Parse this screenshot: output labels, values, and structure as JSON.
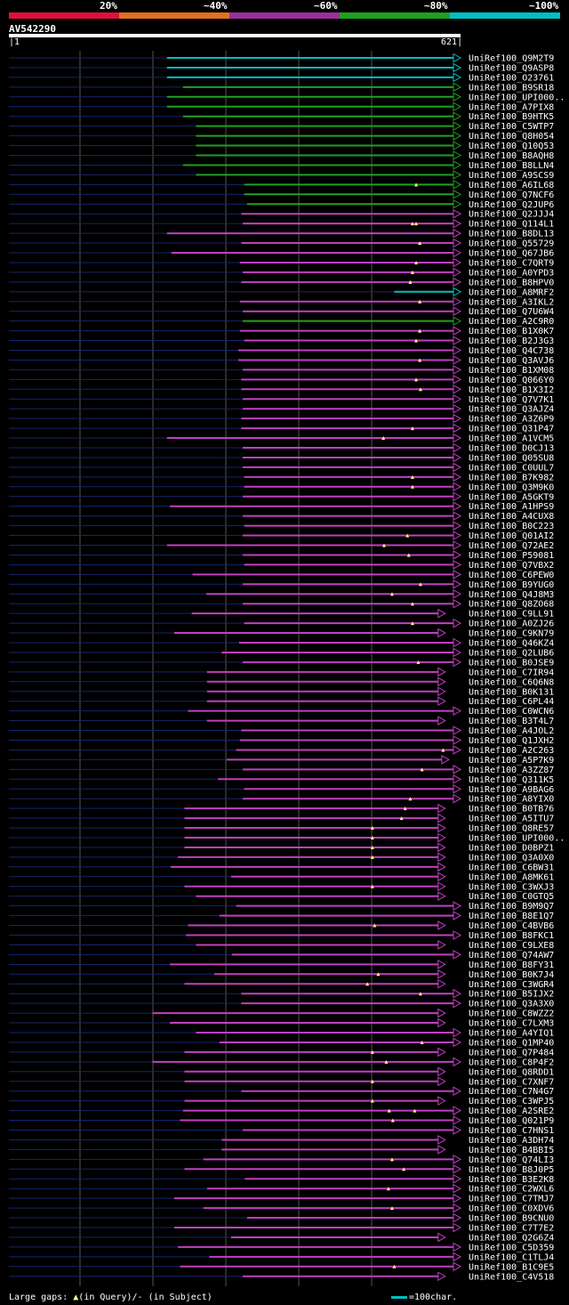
{
  "legend": {
    "labels": [
      "20%",
      "~40%",
      "~60%",
      "~80%",
      "~100%"
    ],
    "colors": [
      "#e0103a",
      "#e07020",
      "#9a2f9a",
      "#20a020",
      "#00c0c0"
    ]
  },
  "query": {
    "name": "AV542290",
    "start": "1",
    "end": "621"
  },
  "footer": {
    "gaps_label": "Large gaps:",
    "query_gap": "(in Query)/",
    "subject_gap": "- (in Subject)",
    "scale_label": "=100char."
  },
  "chart_data": {
    "type": "alignment",
    "query_length": 621,
    "hits": [
      {
        "name": "UniRef100_Q9M2T9",
        "from": 218,
        "to": 621,
        "color": "cyan",
        "gaps": []
      },
      {
        "name": "UniRef100_Q9ASP8",
        "from": 218,
        "to": 621,
        "color": "cyan",
        "gaps": []
      },
      {
        "name": "UniRef100_O23761",
        "from": 218,
        "to": 621,
        "color": "cyan",
        "gaps": []
      },
      {
        "name": "UniRef100_B9SR18",
        "from": 240,
        "to": 621,
        "color": "green",
        "gaps": []
      },
      {
        "name": "UniRef100_UPI000..",
        "from": 218,
        "to": 621,
        "color": "green",
        "gaps": []
      },
      {
        "name": "UniRef100_A7PIX8",
        "from": 218,
        "to": 621,
        "color": "green",
        "gaps": []
      },
      {
        "name": "UniRef100_B9HTK5",
        "from": 240,
        "to": 621,
        "color": "green",
        "gaps": []
      },
      {
        "name": "UniRef100_C5WTP7",
        "from": 258,
        "to": 621,
        "color": "green",
        "gaps": []
      },
      {
        "name": "UniRef100_Q8H054",
        "from": 258,
        "to": 621,
        "color": "green",
        "gaps": []
      },
      {
        "name": "UniRef100_Q10Q53",
        "from": 258,
        "to": 621,
        "color": "green",
        "gaps": []
      },
      {
        "name": "UniRef100_B8AQH8",
        "from": 258,
        "to": 621,
        "color": "green",
        "gaps": []
      },
      {
        "name": "UniRef100_B8LLN4",
        "from": 240,
        "to": 621,
        "color": "green",
        "gaps": []
      },
      {
        "name": "UniRef100_A9SCS9",
        "from": 258,
        "to": 621,
        "color": "green",
        "gaps": []
      },
      {
        "name": "UniRef100_A6IL68",
        "from": 324,
        "to": 621,
        "color": "green",
        "gaps": [
          560
        ]
      },
      {
        "name": "UniRef100_Q7NCF6",
        "from": 324,
        "to": 621,
        "color": "green",
        "gaps": []
      },
      {
        "name": "UniRef100_Q2JUP6",
        "from": 328,
        "to": 621,
        "color": "green",
        "gaps": []
      },
      {
        "name": "UniRef100_Q2JJJ4",
        "from": 320,
        "to": 621,
        "color": "magenta",
        "gaps": []
      },
      {
        "name": "UniRef100_Q114L1",
        "from": 322,
        "to": 621,
        "color": "magenta",
        "gaps": [
          555,
          560
        ]
      },
      {
        "name": "UniRef100_B8DL13",
        "from": 218,
        "to": 621,
        "color": "magenta",
        "gaps": []
      },
      {
        "name": "UniRef100_Q55729",
        "from": 320,
        "to": 621,
        "color": "magenta",
        "gaps": [
          565
        ]
      },
      {
        "name": "UniRef100_Q67JB6",
        "from": 224,
        "to": 621,
        "color": "magenta",
        "gaps": []
      },
      {
        "name": "UniRef100_C7QRT9",
        "from": 318,
        "to": 621,
        "color": "magenta",
        "gaps": [
          560
        ]
      },
      {
        "name": "UniRef100_A0YPD3",
        "from": 322,
        "to": 621,
        "color": "magenta",
        "gaps": [
          555
        ]
      },
      {
        "name": "UniRef100_B8HPV0",
        "from": 320,
        "to": 621,
        "color": "magenta",
        "gaps": [
          552
        ]
      },
      {
        "name": "UniRef100_A8MRF2",
        "from": 530,
        "to": 621,
        "color": "cyan",
        "gaps": []
      },
      {
        "name": "UniRef100_A3IKL2",
        "from": 318,
        "to": 621,
        "color": "magenta",
        "gaps": [
          565
        ]
      },
      {
        "name": "UniRef100_Q7U6W4",
        "from": 322,
        "to": 621,
        "color": "magenta",
        "gaps": []
      },
      {
        "name": "UniRef100_A2C9R0",
        "from": 322,
        "to": 621,
        "color": "green",
        "gaps": []
      },
      {
        "name": "UniRef100_B1X0K7",
        "from": 318,
        "to": 621,
        "color": "magenta",
        "gaps": [
          565
        ]
      },
      {
        "name": "UniRef100_B2J3G3",
        "from": 324,
        "to": 621,
        "color": "magenta",
        "gaps": [
          560
        ]
      },
      {
        "name": "UniRef100_Q4C738",
        "from": 316,
        "to": 621,
        "color": "magenta",
        "gaps": []
      },
      {
        "name": "UniRef100_Q3AVJ6",
        "from": 316,
        "to": 621,
        "color": "magenta",
        "gaps": [
          565
        ]
      },
      {
        "name": "UniRef100_B1XM08",
        "from": 322,
        "to": 621,
        "color": "magenta",
        "gaps": []
      },
      {
        "name": "UniRef100_Q066Y0",
        "from": 320,
        "to": 621,
        "color": "magenta",
        "gaps": [
          560
        ]
      },
      {
        "name": "UniRef100_B1X3I2",
        "from": 320,
        "to": 621,
        "color": "magenta",
        "gaps": [
          566
        ]
      },
      {
        "name": "UniRef100_Q7V7K1",
        "from": 322,
        "to": 621,
        "color": "magenta",
        "gaps": []
      },
      {
        "name": "UniRef100_Q3AJZ4",
        "from": 322,
        "to": 621,
        "color": "magenta",
        "gaps": []
      },
      {
        "name": "UniRef100_A3Z6P9",
        "from": 320,
        "to": 621,
        "color": "magenta",
        "gaps": []
      },
      {
        "name": "UniRef100_Q31P47",
        "from": 320,
        "to": 621,
        "color": "magenta",
        "gaps": [
          555
        ]
      },
      {
        "name": "UniRef100_A1VCM5",
        "from": 218,
        "to": 621,
        "color": "magenta",
        "gaps": [
          515
        ]
      },
      {
        "name": "UniRef100_D0CJ13",
        "from": 322,
        "to": 621,
        "color": "magenta",
        "gaps": []
      },
      {
        "name": "UniRef100_Q05SU8",
        "from": 322,
        "to": 621,
        "color": "magenta",
        "gaps": []
      },
      {
        "name": "UniRef100_C0UUL7",
        "from": 322,
        "to": 621,
        "color": "magenta",
        "gaps": []
      },
      {
        "name": "UniRef100_B7K982",
        "from": 324,
        "to": 621,
        "color": "magenta",
        "gaps": [
          555
        ]
      },
      {
        "name": "UniRef100_Q3M9K0",
        "from": 324,
        "to": 621,
        "color": "magenta",
        "gaps": [
          555
        ]
      },
      {
        "name": "UniRef100_A5GKT9",
        "from": 322,
        "to": 621,
        "color": "magenta",
        "gaps": []
      },
      {
        "name": "UniRef100_A1HPS9",
        "from": 222,
        "to": 621,
        "color": "magenta",
        "gaps": []
      },
      {
        "name": "UniRef100_A4CUX8",
        "from": 322,
        "to": 621,
        "color": "magenta",
        "gaps": []
      },
      {
        "name": "UniRef100_B0C223",
        "from": 324,
        "to": 621,
        "color": "magenta",
        "gaps": []
      },
      {
        "name": "UniRef100_Q01AI2",
        "from": 322,
        "to": 621,
        "color": "magenta",
        "gaps": [
          548
        ]
      },
      {
        "name": "UniRef100_Q72AE2",
        "from": 218,
        "to": 621,
        "color": "magenta",
        "gaps": [
          516
        ]
      },
      {
        "name": "UniRef100_P59081",
        "from": 322,
        "to": 621,
        "color": "magenta",
        "gaps": [
          550
        ]
      },
      {
        "name": "UniRef100_Q7VBX2",
        "from": 324,
        "to": 621,
        "color": "magenta",
        "gaps": []
      },
      {
        "name": "UniRef100_C6PEW0",
        "from": 253,
        "to": 621,
        "color": "magenta",
        "gaps": []
      },
      {
        "name": "UniRef100_B9YUG0",
        "from": 322,
        "to": 621,
        "color": "magenta",
        "gaps": [
          566
        ]
      },
      {
        "name": "UniRef100_Q4J8M3",
        "from": 272,
        "to": 621,
        "color": "magenta",
        "gaps": [
          527
        ]
      },
      {
        "name": "UniRef100_Q8ZO68",
        "from": 322,
        "to": 621,
        "color": "magenta",
        "gaps": [
          555
        ]
      },
      {
        "name": "UniRef100_C9LL91",
        "from": 252,
        "to": 600,
        "color": "magenta",
        "gaps": []
      },
      {
        "name": "UniRef100_A0ZJ26",
        "from": 324,
        "to": 621,
        "color": "magenta",
        "gaps": [
          555
        ]
      },
      {
        "name": "UniRef100_C9KN79",
        "from": 228,
        "to": 600,
        "color": "magenta",
        "gaps": []
      },
      {
        "name": "UniRef100_Q46KZ4",
        "from": 317,
        "to": 621,
        "color": "magenta",
        "gaps": []
      },
      {
        "name": "UniRef100_Q2LUB6",
        "from": 293,
        "to": 621,
        "color": "magenta",
        "gaps": []
      },
      {
        "name": "UniRef100_B0JSE9",
        "from": 322,
        "to": 621,
        "color": "magenta",
        "gaps": [
          563
        ]
      },
      {
        "name": "UniRef100_C7IR94",
        "from": 273,
        "to": 600,
        "color": "magenta",
        "gaps": []
      },
      {
        "name": "UniRef100_C6Q6N8",
        "from": 273,
        "to": 600,
        "color": "magenta",
        "gaps": []
      },
      {
        "name": "UniRef100_B0K131",
        "from": 273,
        "to": 600,
        "color": "magenta",
        "gaps": []
      },
      {
        "name": "UniRef100_C6PL44",
        "from": 273,
        "to": 600,
        "color": "magenta",
        "gaps": []
      },
      {
        "name": "UniRef100_C0WCN6",
        "from": 247,
        "to": 621,
        "color": "magenta",
        "gaps": []
      },
      {
        "name": "UniRef100_B3T4L7",
        "from": 273,
        "to": 600,
        "color": "magenta",
        "gaps": []
      },
      {
        "name": "UniRef100_A4JOL2",
        "from": 320,
        "to": 621,
        "color": "magenta",
        "gaps": []
      },
      {
        "name": "UniRef100_Q1JXH2",
        "from": 318,
        "to": 621,
        "color": "magenta",
        "gaps": []
      },
      {
        "name": "UniRef100_A2C263",
        "from": 313,
        "to": 621,
        "color": "magenta",
        "gaps": [
          597
        ]
      },
      {
        "name": "UniRef100_A5P7K9",
        "from": 300,
        "to": 605,
        "color": "magenta",
        "gaps": []
      },
      {
        "name": "UniRef100_A3ZZ87",
        "from": 322,
        "to": 621,
        "color": "magenta",
        "gaps": [
          568
        ]
      },
      {
        "name": "UniRef100_Q311K5",
        "from": 288,
        "to": 621,
        "color": "magenta",
        "gaps": []
      },
      {
        "name": "UniRef100_A9BAG6",
        "from": 324,
        "to": 621,
        "color": "magenta",
        "gaps": []
      },
      {
        "name": "UniRef100_A8YIX0",
        "from": 322,
        "to": 621,
        "color": "magenta",
        "gaps": [
          552
        ]
      },
      {
        "name": "UniRef100_B0TB76",
        "from": 242,
        "to": 600,
        "color": "magenta",
        "gaps": [
          545
        ]
      },
      {
        "name": "UniRef100_A5ITU7",
        "from": 242,
        "to": 600,
        "color": "magenta",
        "gaps": [
          540
        ]
      },
      {
        "name": "UniRef100_Q8RE57",
        "from": 242,
        "to": 600,
        "color": "magenta",
        "gaps": [
          500
        ]
      },
      {
        "name": "UniRef100_UPI000..",
        "from": 242,
        "to": 600,
        "color": "magenta",
        "gaps": [
          500
        ]
      },
      {
        "name": "UniRef100_D0BPZ1",
        "from": 242,
        "to": 600,
        "color": "magenta",
        "gaps": [
          500
        ]
      },
      {
        "name": "UniRef100_Q3A0X0",
        "from": 233,
        "to": 600,
        "color": "magenta",
        "gaps": [
          500
        ]
      },
      {
        "name": "UniRef100_C6BW31",
        "from": 223,
        "to": 600,
        "color": "magenta",
        "gaps": []
      },
      {
        "name": "UniRef100_A8MK61",
        "from": 306,
        "to": 600,
        "color": "magenta",
        "gaps": []
      },
      {
        "name": "UniRef100_C3WXJ3",
        "from": 242,
        "to": 600,
        "color": "magenta",
        "gaps": [
          500
        ]
      },
      {
        "name": "UniRef100_C0GTQ5",
        "from": 258,
        "to": 600,
        "color": "magenta",
        "gaps": []
      },
      {
        "name": "UniRef100_B9M9Q7",
        "from": 313,
        "to": 621,
        "color": "magenta",
        "gaps": []
      },
      {
        "name": "UniRef100_B8E1Q7",
        "from": 290,
        "to": 621,
        "color": "magenta",
        "gaps": []
      },
      {
        "name": "UniRef100_C4BVB6",
        "from": 247,
        "to": 600,
        "color": "magenta",
        "gaps": [
          503
        ]
      },
      {
        "name": "UniRef100_B8FKC1",
        "from": 244,
        "to": 621,
        "color": "magenta",
        "gaps": []
      },
      {
        "name": "UniRef100_C9LXE8",
        "from": 258,
        "to": 600,
        "color": "magenta",
        "gaps": []
      },
      {
        "name": "UniRef100_Q74AW7",
        "from": 307,
        "to": 621,
        "color": "magenta",
        "gaps": []
      },
      {
        "name": "UniRef100_B8FY31",
        "from": 222,
        "to": 600,
        "color": "magenta",
        "gaps": []
      },
      {
        "name": "UniRef100_B0K7J4",
        "from": 283,
        "to": 600,
        "color": "magenta",
        "gaps": [
          508
        ]
      },
      {
        "name": "UniRef100_C3WGR4",
        "from": 242,
        "to": 600,
        "color": "magenta",
        "gaps": [
          493
        ]
      },
      {
        "name": "UniRef100_B5IJX2",
        "from": 320,
        "to": 621,
        "color": "magenta",
        "gaps": [
          566
        ]
      },
      {
        "name": "UniRef100_Q3A3X0",
        "from": 320,
        "to": 621,
        "color": "magenta",
        "gaps": []
      },
      {
        "name": "UniRef100_C8WZZ2",
        "from": 198,
        "to": 600,
        "color": "magenta",
        "gaps": []
      },
      {
        "name": "UniRef100_C7LXM3",
        "from": 222,
        "to": 600,
        "color": "magenta",
        "gaps": []
      },
      {
        "name": "UniRef100_A4YIQ1",
        "from": 258,
        "to": 621,
        "color": "magenta",
        "gaps": []
      },
      {
        "name": "UniRef100_Q1MP40",
        "from": 290,
        "to": 621,
        "color": "magenta",
        "gaps": [
          568
        ]
      },
      {
        "name": "UniRef100_Q7P484",
        "from": 242,
        "to": 600,
        "color": "magenta",
        "gaps": [
          500
        ]
      },
      {
        "name": "UniRef100_C8P4F2",
        "from": 198,
        "to": 621,
        "color": "magenta",
        "gaps": [
          519
        ]
      },
      {
        "name": "UniRef100_Q8RDD1",
        "from": 242,
        "to": 600,
        "color": "magenta",
        "gaps": []
      },
      {
        "name": "UniRef100_C7XNF7",
        "from": 242,
        "to": 600,
        "color": "magenta",
        "gaps": [
          500
        ]
      },
      {
        "name": "UniRef100_C7N4G7",
        "from": 320,
        "to": 621,
        "color": "magenta",
        "gaps": []
      },
      {
        "name": "UniRef100_C3WPJ5",
        "from": 242,
        "to": 600,
        "color": "magenta",
        "gaps": [
          500
        ]
      },
      {
        "name": "UniRef100_A2SRE2",
        "from": 240,
        "to": 621,
        "color": "magenta",
        "gaps": [
          523,
          558
        ]
      },
      {
        "name": "UniRef100_Q021P9",
        "from": 236,
        "to": 621,
        "color": "magenta",
        "gaps": [
          528
        ]
      },
      {
        "name": "UniRef100_C7HNS1",
        "from": 322,
        "to": 621,
        "color": "magenta",
        "gaps": []
      },
      {
        "name": "UniRef100_A3DH74",
        "from": 293,
        "to": 600,
        "color": "magenta",
        "gaps": []
      },
      {
        "name": "UniRef100_B4BBI5",
        "from": 293,
        "to": 600,
        "color": "magenta",
        "gaps": []
      },
      {
        "name": "UniRef100_Q74LI3",
        "from": 268,
        "to": 621,
        "color": "magenta",
        "gaps": [
          527
        ]
      },
      {
        "name": "UniRef100_B8J0P5",
        "from": 242,
        "to": 621,
        "color": "magenta",
        "gaps": [
          543
        ]
      },
      {
        "name": "UniRef100_B3E2K8",
        "from": 325,
        "to": 621,
        "color": "magenta",
        "gaps": []
      },
      {
        "name": "UniRef100_C2WXL6",
        "from": 273,
        "to": 621,
        "color": "magenta",
        "gaps": [
          522
        ]
      },
      {
        "name": "UniRef100_C7TMJ7",
        "from": 228,
        "to": 621,
        "color": "magenta",
        "gaps": []
      },
      {
        "name": "UniRef100_C0XDV6",
        "from": 268,
        "to": 621,
        "color": "magenta",
        "gaps": [
          527
        ]
      },
      {
        "name": "UniRef100_B9CNU0",
        "from": 328,
        "to": 621,
        "color": "magenta",
        "gaps": []
      },
      {
        "name": "UniRef100_C7T7E2",
        "from": 228,
        "to": 621,
        "color": "magenta",
        "gaps": []
      },
      {
        "name": "UniRef100_Q2G6Z4",
        "from": 306,
        "to": 600,
        "color": "magenta",
        "gaps": []
      },
      {
        "name": "UniRef100_C5D359",
        "from": 233,
        "to": 621,
        "color": "magenta",
        "gaps": []
      },
      {
        "name": "UniRef100_C1TLJ4",
        "from": 276,
        "to": 621,
        "color": "magenta",
        "gaps": []
      },
      {
        "name": "UniRef100_B1C9E5",
        "from": 236,
        "to": 621,
        "color": "magenta",
        "gaps": [
          530
        ]
      },
      {
        "name": "UniRef100_C4V518",
        "from": 322,
        "to": 600,
        "color": "magenta",
        "gaps": []
      }
    ]
  }
}
